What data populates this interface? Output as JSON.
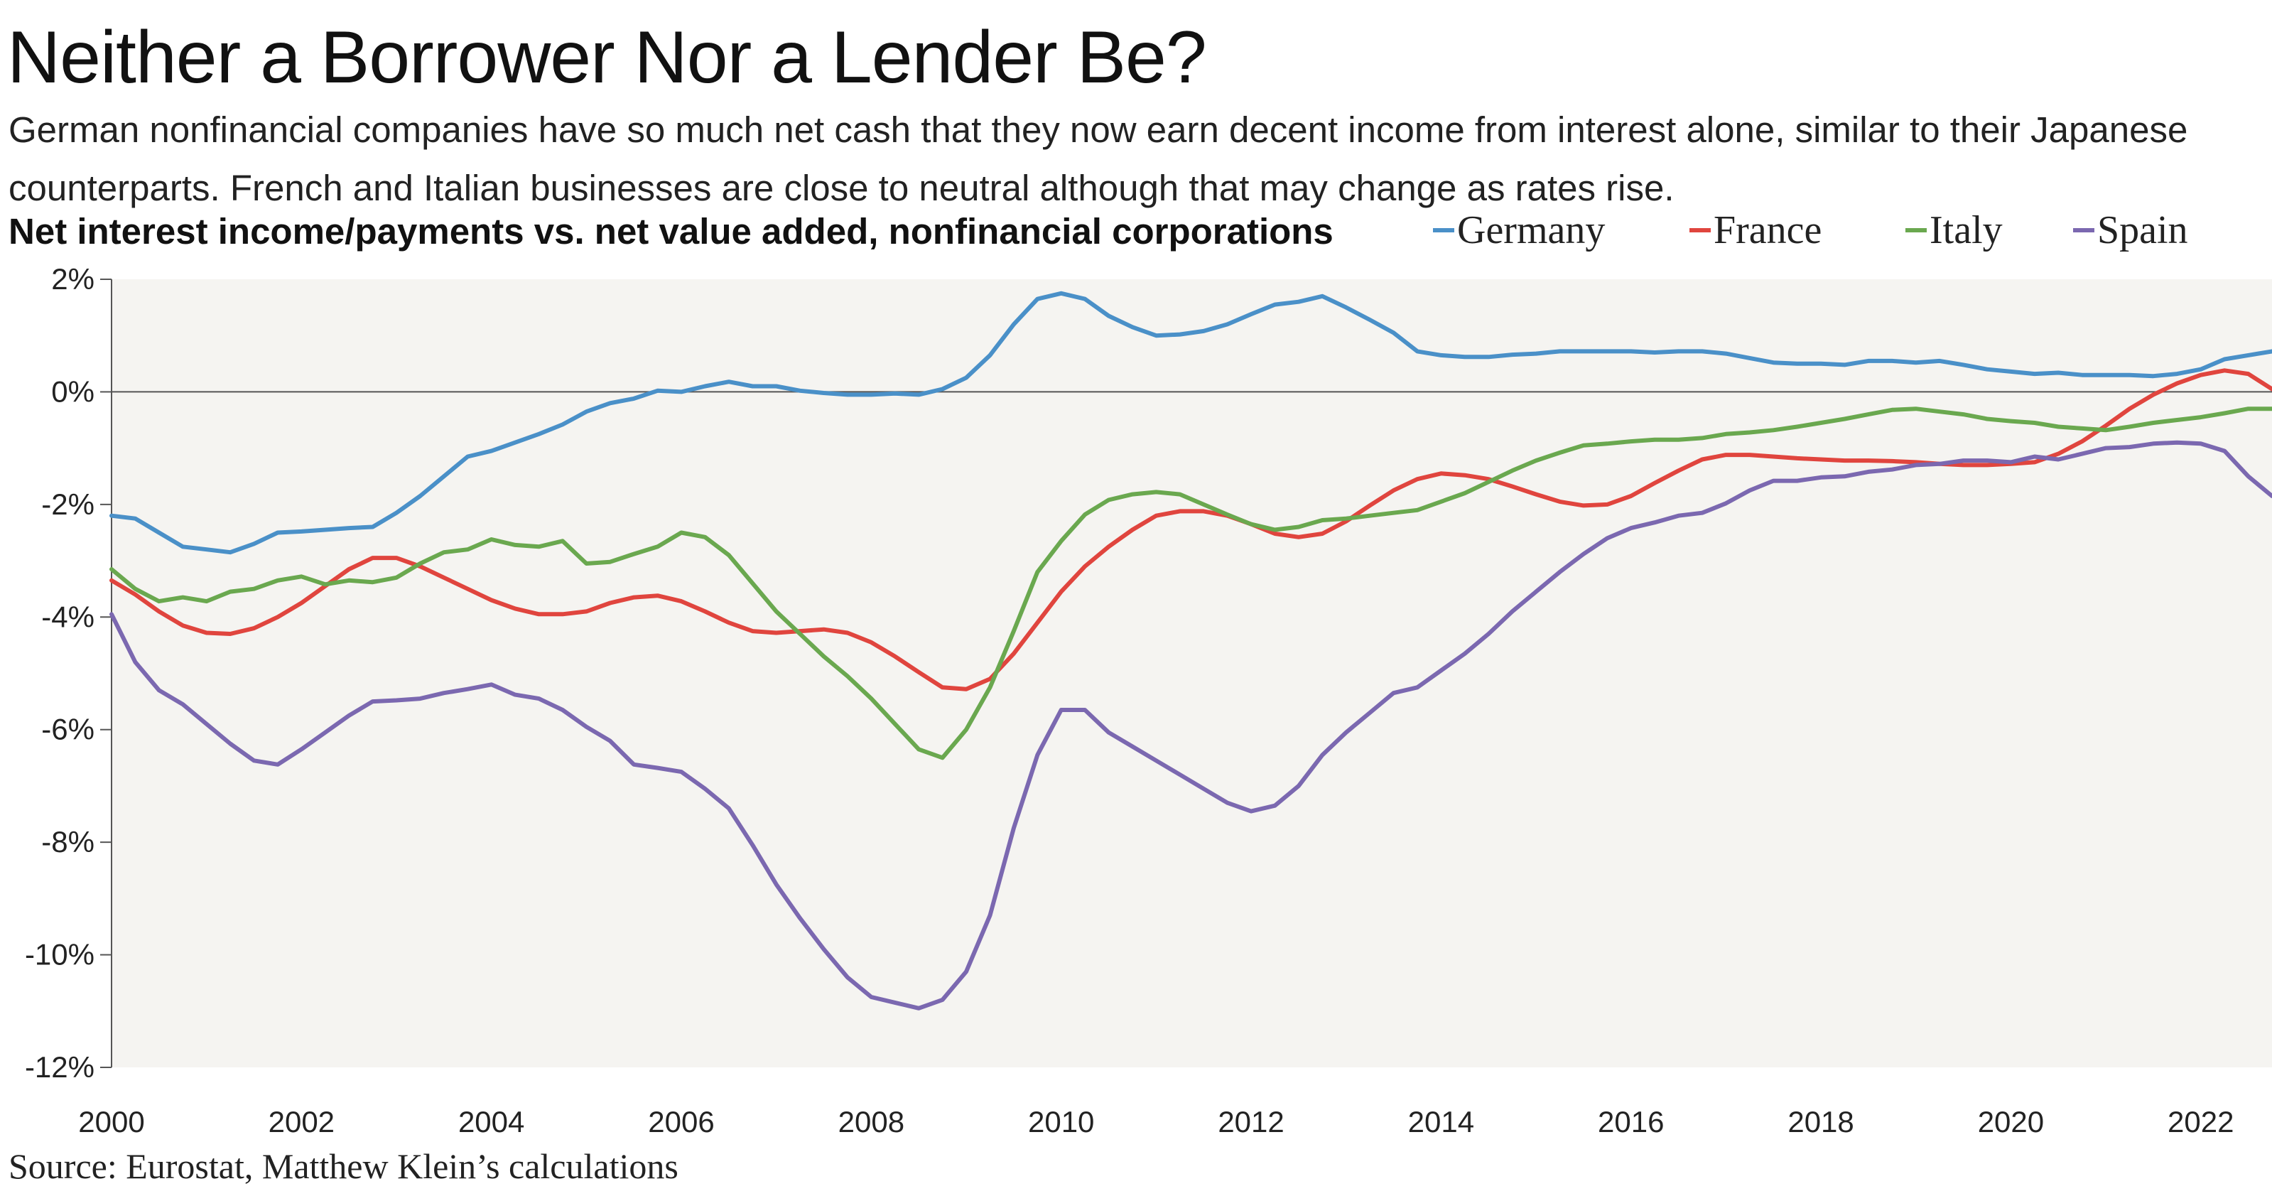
{
  "title": "Neither a Borrower Nor a Lender Be?",
  "subtitle": "German nonfinancial companies have so much net cash that they now earn decent income from interest alone, similar to their Japanese counterparts. French and Italian businesses are close to neutral although that may change as rates rise.",
  "source": "Source: Eurostat, Matthew Klein’s calculations",
  "chart_data": {
    "type": "line",
    "title": "Net interest income/payments vs. net value added, nonfinancial corporations",
    "xlabel": "",
    "ylabel": "",
    "x_ticks": [
      "2000",
      "2002",
      "2004",
      "2006",
      "2008",
      "2010",
      "2012",
      "2014",
      "2016",
      "2018",
      "2020",
      "2022"
    ],
    "y_ticks": [
      "2%",
      "0%",
      "-2%",
      "-4%",
      "-6%",
      "-8%",
      "-10%",
      "-12%"
    ],
    "ylim": [
      -12,
      2
    ],
    "xlim": [
      2000,
      2022.75
    ],
    "grid": false,
    "legend_position": "top-right",
    "x": [
      2000.0,
      2000.25,
      2000.5,
      2000.75,
      2001.0,
      2001.25,
      2001.5,
      2001.75,
      2002.0,
      2002.25,
      2002.5,
      2002.75,
      2003.0,
      2003.25,
      2003.5,
      2003.75,
      2004.0,
      2004.25,
      2004.5,
      2004.75,
      2005.0,
      2005.25,
      2005.5,
      2005.75,
      2006.0,
      2006.25,
      2006.5,
      2006.75,
      2007.0,
      2007.25,
      2007.5,
      2007.75,
      2008.0,
      2008.25,
      2008.5,
      2008.75,
      2009.0,
      2009.25,
      2009.5,
      2009.75,
      2010.0,
      2010.25,
      2010.5,
      2010.75,
      2011.0,
      2011.25,
      2011.5,
      2011.75,
      2012.0,
      2012.25,
      2012.5,
      2012.75,
      2013.0,
      2013.25,
      2013.5,
      2013.75,
      2014.0,
      2014.25,
      2014.5,
      2014.75,
      2015.0,
      2015.25,
      2015.5,
      2015.75,
      2016.0,
      2016.25,
      2016.5,
      2016.75,
      2017.0,
      2017.25,
      2017.5,
      2017.75,
      2018.0,
      2018.25,
      2018.5,
      2018.75,
      2019.0,
      2019.25,
      2019.5,
      2019.75,
      2020.0,
      2020.25,
      2020.5,
      2020.75,
      2021.0,
      2021.25,
      2021.5,
      2021.75,
      2022.0,
      2022.25,
      2022.5,
      2022.75
    ],
    "series": [
      {
        "name": "Germany",
        "color": "#4a90c8",
        "values": [
          -2.2,
          -2.25,
          -2.5,
          -2.75,
          -2.8,
          -2.85,
          -2.7,
          -2.5,
          -2.48,
          -2.45,
          -2.42,
          -2.4,
          -2.15,
          -1.85,
          -1.5,
          -1.15,
          -1.05,
          -0.9,
          -0.75,
          -0.58,
          -0.35,
          -0.2,
          -0.12,
          0.02,
          0.0,
          0.1,
          0.18,
          0.1,
          0.1,
          0.02,
          -0.02,
          -0.05,
          -0.05,
          -0.03,
          -0.05,
          0.05,
          0.25,
          0.65,
          1.2,
          1.65,
          1.75,
          1.65,
          1.35,
          1.15,
          1.0,
          1.02,
          1.08,
          1.2,
          1.38,
          1.55,
          1.6,
          1.7,
          1.5,
          1.28,
          1.05,
          0.72,
          0.65,
          0.62,
          0.62,
          0.66,
          0.68,
          0.72,
          0.72,
          0.72,
          0.72,
          0.7,
          0.72,
          0.72,
          0.68,
          0.6,
          0.52,
          0.5,
          0.5,
          0.48,
          0.55,
          0.55,
          0.52,
          0.55,
          0.48,
          0.4,
          0.36,
          0.32,
          0.34,
          0.3,
          0.3,
          0.3,
          0.28,
          0.32,
          0.4,
          0.58,
          0.65,
          0.72
        ]
      },
      {
        "name": "France",
        "color": "#e0453e",
        "values": [
          -3.35,
          -3.6,
          -3.9,
          -4.15,
          -4.28,
          -4.3,
          -4.2,
          -4.0,
          -3.75,
          -3.45,
          -3.15,
          -2.95,
          -2.95,
          -3.1,
          -3.3,
          -3.5,
          -3.7,
          -3.85,
          -3.95,
          -3.95,
          -3.9,
          -3.75,
          -3.65,
          -3.62,
          -3.72,
          -3.9,
          -4.1,
          -4.25,
          -4.28,
          -4.25,
          -4.22,
          -4.28,
          -4.45,
          -4.7,
          -4.98,
          -5.25,
          -5.28,
          -5.1,
          -4.65,
          -4.1,
          -3.55,
          -3.1,
          -2.75,
          -2.45,
          -2.2,
          -2.12,
          -2.12,
          -2.2,
          -2.35,
          -2.52,
          -2.58,
          -2.52,
          -2.3,
          -2.02,
          -1.75,
          -1.55,
          -1.45,
          -1.48,
          -1.55,
          -1.68,
          -1.82,
          -1.95,
          -2.02,
          -2.0,
          -1.85,
          -1.62,
          -1.4,
          -1.2,
          -1.12,
          -1.12,
          -1.15,
          -1.18,
          -1.2,
          -1.22,
          -1.22,
          -1.23,
          -1.25,
          -1.28,
          -1.3,
          -1.3,
          -1.28,
          -1.25,
          -1.1,
          -0.88,
          -0.6,
          -0.3,
          -0.05,
          0.15,
          0.3,
          0.38,
          0.32,
          0.05
        ]
      },
      {
        "name": "Italy",
        "color": "#6aa84f",
        "values": [
          -3.15,
          -3.5,
          -3.72,
          -3.65,
          -3.72,
          -3.55,
          -3.5,
          -3.35,
          -3.28,
          -3.42,
          -3.35,
          -3.38,
          -3.3,
          -3.05,
          -2.85,
          -2.8,
          -2.62,
          -2.72,
          -2.75,
          -2.65,
          -3.05,
          -3.02,
          -2.88,
          -2.75,
          -2.5,
          -2.58,
          -2.9,
          -3.4,
          -3.9,
          -4.3,
          -4.7,
          -5.05,
          -5.45,
          -5.9,
          -6.35,
          -6.5,
          -6.0,
          -5.25,
          -4.25,
          -3.2,
          -2.65,
          -2.18,
          -1.92,
          -1.82,
          -1.78,
          -1.82,
          -2.0,
          -2.18,
          -2.35,
          -2.45,
          -2.4,
          -2.28,
          -2.25,
          -2.2,
          -2.15,
          -2.1,
          -1.95,
          -1.8,
          -1.6,
          -1.4,
          -1.22,
          -1.08,
          -0.95,
          -0.92,
          -0.88,
          -0.85,
          -0.85,
          -0.82,
          -0.75,
          -0.72,
          -0.68,
          -0.62,
          -0.55,
          -0.48,
          -0.4,
          -0.32,
          -0.3,
          -0.35,
          -0.4,
          -0.48,
          -0.52,
          -0.55,
          -0.62,
          -0.65,
          -0.68,
          -0.62,
          -0.55,
          -0.5,
          -0.45,
          -0.38,
          -0.3,
          -0.3
        ]
      },
      {
        "name": "Spain",
        "color": "#7b68b0",
        "values": [
          -3.95,
          -4.8,
          -5.3,
          -5.55,
          -5.9,
          -6.25,
          -6.55,
          -6.62,
          -6.35,
          -6.05,
          -5.75,
          -5.5,
          -5.48,
          -5.45,
          -5.35,
          -5.28,
          -5.2,
          -5.38,
          -5.45,
          -5.65,
          -5.95,
          -6.2,
          -6.62,
          -6.68,
          -6.75,
          -7.05,
          -7.4,
          -8.05,
          -8.75,
          -9.35,
          -9.9,
          -10.4,
          -10.75,
          -10.85,
          -10.95,
          -10.8,
          -10.3,
          -9.3,
          -7.75,
          -6.45,
          -5.65,
          -5.65,
          -6.05,
          -6.3,
          -6.55,
          -6.8,
          -7.05,
          -7.3,
          -7.45,
          -7.35,
          -7.0,
          -6.45,
          -6.05,
          -5.7,
          -5.35,
          -5.25,
          -4.95,
          -4.65,
          -4.3,
          -3.9,
          -3.55,
          -3.2,
          -2.88,
          -2.6,
          -2.42,
          -2.32,
          -2.2,
          -2.15,
          -1.98,
          -1.75,
          -1.58,
          -1.58,
          -1.52,
          -1.5,
          -1.42,
          -1.38,
          -1.3,
          -1.28,
          -1.22,
          -1.22,
          -1.25,
          -1.15,
          -1.2,
          -1.1,
          -1.0,
          -0.98,
          -0.92,
          -0.9,
          -0.92,
          -1.05,
          -1.5,
          -1.85
        ]
      }
    ]
  }
}
